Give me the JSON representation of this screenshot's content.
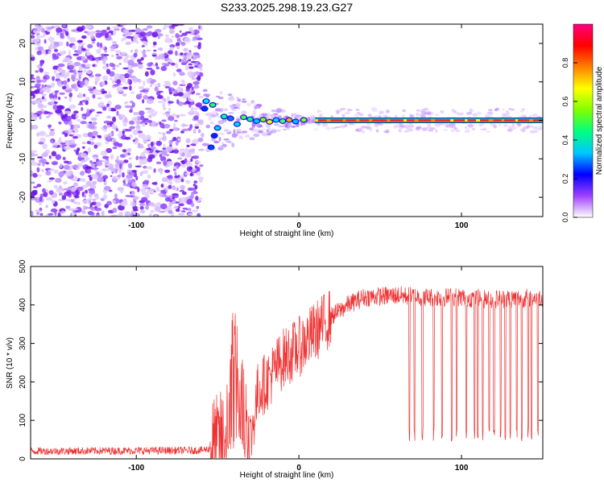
{
  "title": "S233.2025.298.19.23.G27",
  "chart_data": [
    {
      "type": "heatmap",
      "xlabel": "Height of straight line (km)",
      "ylabel": "Frequency (Hz)",
      "xlim": [
        -165,
        150
      ],
      "ylim": [
        -25,
        25
      ],
      "xticks": [
        -100,
        0,
        100
      ],
      "yticks": [
        -20,
        -10,
        0,
        10,
        20
      ],
      "xtick_labels": [
        "-100",
        "0",
        "100"
      ],
      "ytick_labels": [
        "-20",
        "-10",
        "0",
        "10",
        "20"
      ],
      "colorbar": {
        "label": "Normalized spectral amplitude",
        "range": [
          0,
          1
        ],
        "ticks": [
          0,
          0.2,
          0.4,
          0.6,
          0.8
        ],
        "tick_labels": [
          "0.0",
          "0.2",
          "0.4",
          "0.6",
          "0.8"
        ],
        "colors": [
          "#ffffff",
          "#a040ff",
          "#0000ff",
          "#00c8ff",
          "#00ff80",
          "#80ff00",
          "#ffff00",
          "#ff8000",
          "#ff0000",
          "#ff0080"
        ]
      },
      "description_points": {
        "noise_region_x": [
          -165,
          -60
        ],
        "transition_x": [
          -60,
          10
        ],
        "line_x": [
          10,
          150
        ],
        "line_freq": 0
      }
    },
    {
      "type": "line",
      "xlabel": "Height of straight line (km)",
      "ylabel": "SNR (10 * v/v)",
      "xlim": [
        -165,
        150
      ],
      "ylim": [
        0,
        500
      ],
      "xticks": [
        -100,
        0,
        100
      ],
      "yticks": [
        0,
        100,
        200,
        300,
        400,
        500
      ],
      "xtick_labels": [
        "-100",
        "0",
        "100"
      ],
      "ytick_labels": [
        "0",
        "100",
        "200",
        "300",
        "400",
        "500"
      ],
      "color": "#ee3333",
      "envelope": {
        "x": [
          -165,
          -60,
          -50,
          -45,
          -40,
          -35,
          -30,
          -25,
          -20,
          -10,
          0,
          10,
          20,
          30,
          40,
          60,
          80,
          100,
          120,
          150
        ],
        "y": [
          20,
          22,
          30,
          60,
          280,
          140,
          40,
          180,
          200,
          260,
          290,
          330,
          370,
          400,
          420,
          425,
          420,
          420,
          415,
          420
        ]
      },
      "dropouts_x": [
        68,
        71,
        76,
        83,
        88,
        94,
        97,
        103,
        108,
        110,
        113,
        117,
        120,
        124,
        127,
        130,
        134,
        137,
        141,
        143,
        147
      ]
    }
  ]
}
